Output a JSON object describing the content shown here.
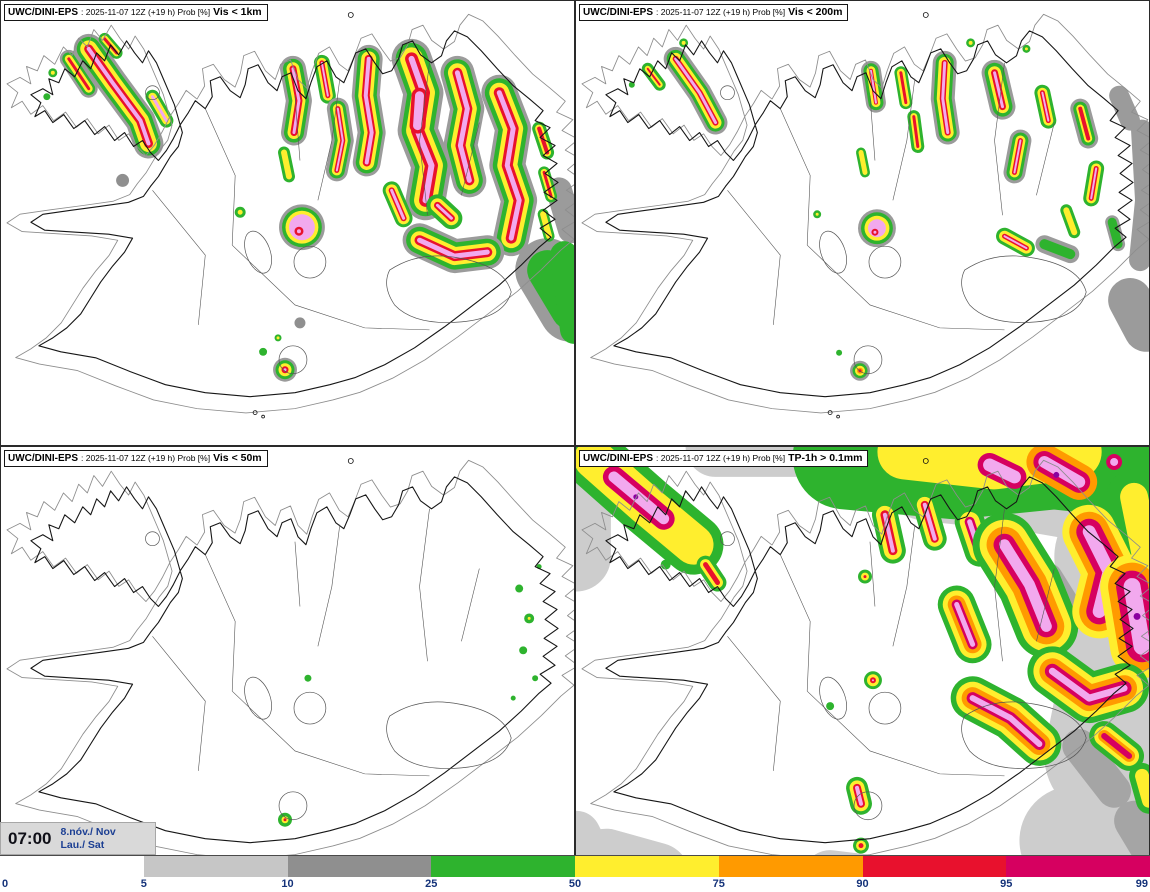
{
  "panels": [
    {
      "model": "UWC/DINI-EPS",
      "meta": ": 2025-11-07 12Z (+19 h) Prob [%]",
      "threshold": "Vis < 1km"
    },
    {
      "model": "UWC/DINI-EPS",
      "meta": ": 2025-11-07 12Z (+19 h) Prob [%]",
      "threshold": "Vis < 200m"
    },
    {
      "model": "UWC/DINI-EPS",
      "meta": ": 2025-11-07 12Z (+19 h) Prob [%]",
      "threshold": "Vis < 50m"
    },
    {
      "model": "UWC/DINI-EPS",
      "meta": ": 2025-11-07 12Z (+19 h) Prob [%]",
      "threshold": "TP-1h > 0.1mm"
    }
  ],
  "time_box": {
    "time": "07:00",
    "date_line1": "8.nóv./ Nov",
    "date_line2": "Lau./ Sat"
  },
  "colorbar": {
    "ticks": [
      "0",
      "5",
      "10",
      "25",
      "50",
      "75",
      "90",
      "95",
      "99"
    ],
    "segment_colors": [
      "#ffffff",
      "#c6c6c6",
      "#8f8f8f",
      "#2eb32e",
      "#ffee2e",
      "#ff9a00",
      "#e8112d",
      "#d60060"
    ]
  },
  "palette": {
    "low_gray_outline": "#9b9b9b",
    "light_gray_area": "#cdcdcd",
    "medium_gray_area": "#a5a5a5",
    "green": "#2eb32e",
    "yellow": "#ffee2e",
    "orange": "#ff9a00",
    "red": "#e8112d",
    "magenta": "#d60060",
    "pink_core": "#f2a9ee",
    "purple_core": "#8a00a0",
    "tick_text": "#15337a"
  }
}
